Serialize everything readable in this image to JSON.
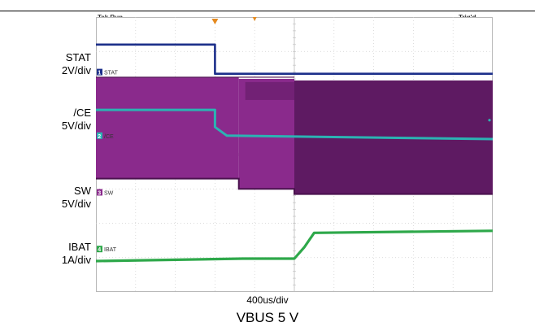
{
  "header": {
    "status": "Tek Run",
    "trigger_state": "Trig'd"
  },
  "timebase": "400us/div",
  "condition": "VBUS 5 V",
  "colors": {
    "stat": "#1c2f8a",
    "ce": "#2bb3b3",
    "sw": "#8a2a8c",
    "sw_dark": "#5e1a62",
    "ibat": "#2ea84a",
    "trigger": "#e58a1f"
  },
  "channels": [
    {
      "id": "1",
      "label": "STAT",
      "scale": "2V/div"
    },
    {
      "id": "2",
      "label": "/CE",
      "scale": "5V/div"
    },
    {
      "id": "3",
      "label": "SW",
      "scale": "5V/div"
    },
    {
      "id": "4",
      "label": "IBAT",
      "scale": "1A/div"
    }
  ],
  "chart_data": {
    "type": "line",
    "title": "",
    "x_unit": "divisions",
    "xlim": [
      0,
      10
    ],
    "ylim": [
      0,
      8
    ],
    "grid": true,
    "series": [
      {
        "name": "STAT",
        "x": [
          0,
          3.0,
          3.0,
          10
        ],
        "y": [
          7.2,
          7.2,
          6.35,
          6.35
        ]
      },
      {
        "name": "/CE",
        "x": [
          0,
          3.0,
          3.0,
          3.3,
          10
        ],
        "y": [
          5.3,
          5.3,
          4.8,
          4.55,
          4.45
        ]
      },
      {
        "name": "SW",
        "x": [
          0,
          3.6,
          3.6,
          5.0,
          5.0,
          10
        ],
        "y": [
          3.3,
          3.3,
          3.0,
          3.0,
          2.85,
          2.85
        ]
      },
      {
        "name": "IBAT",
        "x": [
          0,
          3.7,
          5.0,
          5.25,
          5.5,
          10
        ],
        "y": [
          0.9,
          0.97,
          0.97,
          1.3,
          1.72,
          1.78
        ]
      }
    ]
  }
}
